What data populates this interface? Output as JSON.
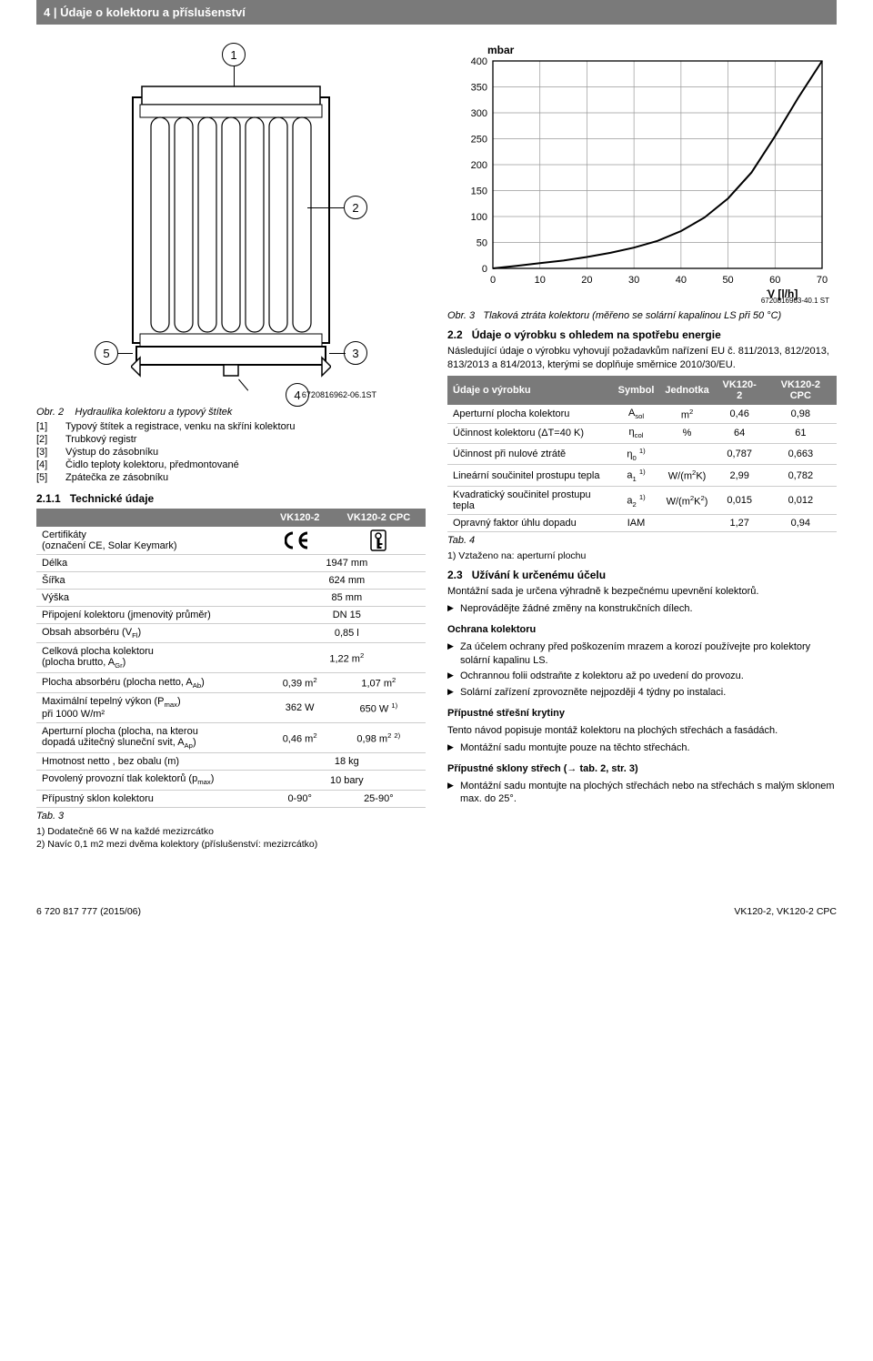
{
  "header": {
    "pagenum": "4",
    "title": "Údaje o kolektoru a příslušenství"
  },
  "diagram": {
    "ref": "6720816962-06.1ST",
    "labels": [
      "1",
      "2",
      "3",
      "4",
      "5"
    ],
    "stroke": "#000000"
  },
  "fig2": {
    "caption_num": "Obr. 2",
    "caption_text": "Hydraulika kolektoru a typový štítek",
    "legend": [
      {
        "k": "[1]",
        "v": "Typový štítek a registrace, venku na skříni kolektoru"
      },
      {
        "k": "[2]",
        "v": "Trubkový registr"
      },
      {
        "k": "[3]",
        "v": "Výstup do zásobníku"
      },
      {
        "k": "[4]",
        "v": "Čidlo teploty kolektoru, předmontované"
      },
      {
        "k": "[5]",
        "v": "Zpátečka ze zásobníku"
      }
    ]
  },
  "sec211": {
    "num": "2.1.1",
    "title": "Technické údaje"
  },
  "spec_table": {
    "head": [
      "",
      "VK120-2",
      "VK120-2 CPC"
    ],
    "rows": [
      {
        "label": "Certifikáty\n(označení CE, Solar Keymark)",
        "v1": "CE_ICON",
        "v2": "KEYMARK_ICON",
        "iconrow": true
      },
      {
        "label": "Délka",
        "span": "1947 mm"
      },
      {
        "label": "Šířka",
        "span": "624 mm"
      },
      {
        "label": "Výška",
        "span": "85 mm"
      },
      {
        "label": "Připojení kolektoru (jmenovitý průměr)",
        "span": "DN 15"
      },
      {
        "label": "Obsah absorbéru (V_Fl)",
        "span": "0,85 l",
        "sub": "Fl"
      },
      {
        "label": "Celková plocha kolektoru\n(plocha brutto, A_Gr)",
        "span": "1,22 m²",
        "sub": "Gr"
      },
      {
        "label": "Plocha absorbéru (plocha netto, A_Ab)",
        "v1": "0,39 m²",
        "v2": "1,07 m²",
        "sub": "Ab"
      },
      {
        "label": "Maximální tepelný výkon (P_max)\npři 1000 W/m²",
        "v1": "362 W",
        "v2": "650 W ¹⁾",
        "sub": "max"
      },
      {
        "label": "Aperturní plocha (plocha, na kterou\ndopadá užitečný sluneční svit, A_Ap)",
        "v1": "0,46 m²",
        "v2": "0,98 m² ²⁾",
        "sub": "Ap"
      },
      {
        "label": "Hmotnost netto , bez obalu (m)",
        "span": "18 kg"
      },
      {
        "label": "Povolený provozní tlak kolektorů (p_max)",
        "span": "10 bary",
        "sub": "max"
      },
      {
        "label": "Přípustný sklon kolektoru",
        "v1": "0-90°",
        "v2": "25-90°"
      }
    ],
    "tab_label": "Tab. 3",
    "footnotes": [
      "1) Dodatečně 66 W na každé mezizrcátko",
      "2) Navíc 0,1 m2 mezi dvěma kolektory (příslušenství: mezizrcátko)"
    ]
  },
  "chart": {
    "type": "line",
    "y_label": "mbar",
    "x_label": "V [l/h]",
    "x_label_prefix": "V̇",
    "xlim": [
      0,
      70
    ],
    "xtick_step": 10,
    "ylim": [
      0,
      400
    ],
    "ytick_step": 50,
    "grid_color": "#9a9a9a",
    "axis_color": "#000000",
    "line_color": "#000000",
    "line_width": 2.0,
    "background": "#ffffff",
    "points": [
      [
        0,
        0
      ],
      [
        5,
        5
      ],
      [
        10,
        10
      ],
      [
        15,
        15
      ],
      [
        20,
        22
      ],
      [
        25,
        30
      ],
      [
        30,
        40
      ],
      [
        35,
        53
      ],
      [
        40,
        72
      ],
      [
        45,
        98
      ],
      [
        50,
        135
      ],
      [
        55,
        185
      ],
      [
        60,
        255
      ],
      [
        65,
        330
      ],
      [
        70,
        410
      ]
    ],
    "ref": "6720816963-40.1 ST"
  },
  "fig3": {
    "caption_num": "Obr. 3",
    "caption_text": "Tlaková ztráta kolektoru (měřeno se solární kapalinou LS při 50 °C)"
  },
  "sec22": {
    "num": "2.2",
    "title": "Údaje o výrobku s ohledem na spotřebu energie",
    "para": "Následující údaje o výrobku vyhovují požadavkům nařízení EU č. 811/2013, 812/2013, 813/2013 a 814/2013, kterými se doplňuje směrnice 2010/30/EU."
  },
  "prod_table": {
    "head": [
      "Údaje o výrobku",
      "Symbol",
      "Jednotka",
      "VK120-2",
      "VK120-2 CPC"
    ],
    "rows": [
      {
        "label": "Aperturní plocha kolektoru",
        "sym": "A_sol",
        "unit": "m²",
        "a": "0,46",
        "b": "0,98"
      },
      {
        "label": "Účinnost kolektoru (ΔT=40 K)",
        "sym": "η_col",
        "unit": "%",
        "a": "64",
        "b": "61"
      },
      {
        "label": "Účinnost při nulové ztrátě",
        "sym": "η₀ ¹⁾",
        "unit": "",
        "a": "0,787",
        "b": "0,663"
      },
      {
        "label": "Lineární součinitel prostupu tepla",
        "sym": "a₁ ¹⁾",
        "unit": "W/(m²K)",
        "a": "2,99",
        "b": "0,782"
      },
      {
        "label": "Kvadratický součinitel prostupu tepla",
        "sym": "a₂ ¹⁾",
        "unit": "W/(m²K²)",
        "a": "0,015",
        "b": "0,012"
      },
      {
        "label": "Opravný faktor úhlu dopadu",
        "sym": "IAM",
        "unit": "",
        "a": "1,27",
        "b": "0,94"
      }
    ],
    "tab_label": "Tab. 4",
    "footnote": "1) Vztaženo na: aperturní plochu"
  },
  "sec23": {
    "num": "2.3",
    "title": "Užívání k určenému účelu",
    "para1": "Montážní sada je určena výhradně k bezpečnému upevnění kolektorů.",
    "b1": "Neprovádějte žádné změny na konstrukčních dílech.",
    "h_ochrana": "Ochrana kolektoru",
    "b2": "Za účelem ochrany před poškozením mrazem a korozí používejte pro kolektory solární kapalinu LS.",
    "b3": "Ochrannou folii odstraňte z kolektoru až po uvedení do provozu.",
    "b4": "Solární zařízení zprovozněte nejpozději 4 týdny po instalaci.",
    "h_krytiny": "Přípustné střešní krytiny",
    "para2": "Tento návod popisuje montáž kolektoru na plochých střechách a fasádách.",
    "b5": "Montážní sadu montujte pouze na těchto střechách.",
    "h_sklony": "Přípustné sklony střech (→ tab. 2, str. 3)",
    "b6": "Montážní sadu montujte na plochých střechách nebo na střechách s malým sklonem max. do 25°."
  },
  "footer": {
    "left": "6 720 817 777 (2015/06)",
    "right": "VK120-2, VK120-2 CPC"
  }
}
